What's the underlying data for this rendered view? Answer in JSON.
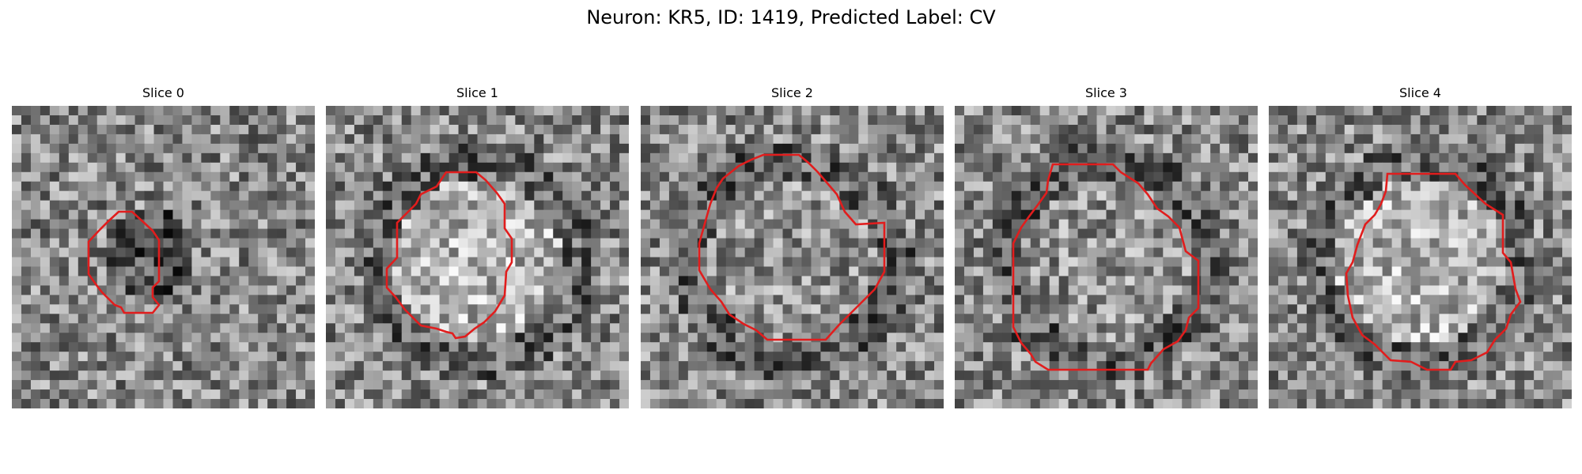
{
  "figure": {
    "title": "Neuron: KR5, ID: 1419, Predicted Label: CV",
    "colormap": "grayscale",
    "contour_color": "#e11d1d"
  },
  "panels": [
    {
      "title": "Slice 0",
      "center_brightness": "dark",
      "seed": 11
    },
    {
      "title": "Slice 1",
      "center_brightness": "bright",
      "seed": 23
    },
    {
      "title": "Slice 2",
      "center_brightness": "medium",
      "seed": 37
    },
    {
      "title": "Slice 3",
      "center_brightness": "medium",
      "seed": 41
    },
    {
      "title": "Slice 4",
      "center_brightness": "bright",
      "seed": 53
    }
  ]
}
